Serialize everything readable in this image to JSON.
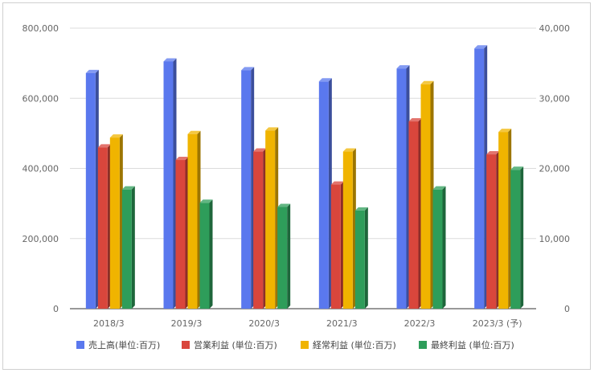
{
  "chart_data": {
    "type": "bar",
    "categories": [
      "2018/3",
      "2019/3",
      "2020/3",
      "2021/3",
      "2022/3",
      "2023/3 (予)"
    ],
    "y_left": {
      "ticks": [
        "0",
        "200,000",
        "400,000",
        "600,000",
        "800,000"
      ],
      "ylim": [
        0,
        800000
      ]
    },
    "y_right": {
      "ticks": [
        "0",
        "10,000",
        "20,000",
        "30,000",
        "40,000"
      ],
      "ylim": [
        0,
        40000
      ]
    },
    "series": [
      {
        "name": "売上高(単位:百万)",
        "axis": "left",
        "color": "#5a78ee",
        "values": [
          672000,
          705000,
          680000,
          648000,
          685000,
          742000
        ]
      },
      {
        "name": "営業利益 (単位:百万)",
        "axis": "right",
        "color": "#d9463c",
        "values": [
          23000,
          21200,
          22400,
          17700,
          26700,
          22000
        ]
      },
      {
        "name": "経常利益 (単位:百万)",
        "axis": "right",
        "color": "#f0b400",
        "values": [
          24400,
          24900,
          25400,
          22400,
          32000,
          25200
        ]
      },
      {
        "name": "最終利益 (単位:百万)",
        "axis": "right",
        "color": "#2e9d5a",
        "values": [
          17000,
          15100,
          14500,
          14000,
          17000,
          19800
        ]
      }
    ],
    "grid": true,
    "legend_position": "bottom"
  }
}
